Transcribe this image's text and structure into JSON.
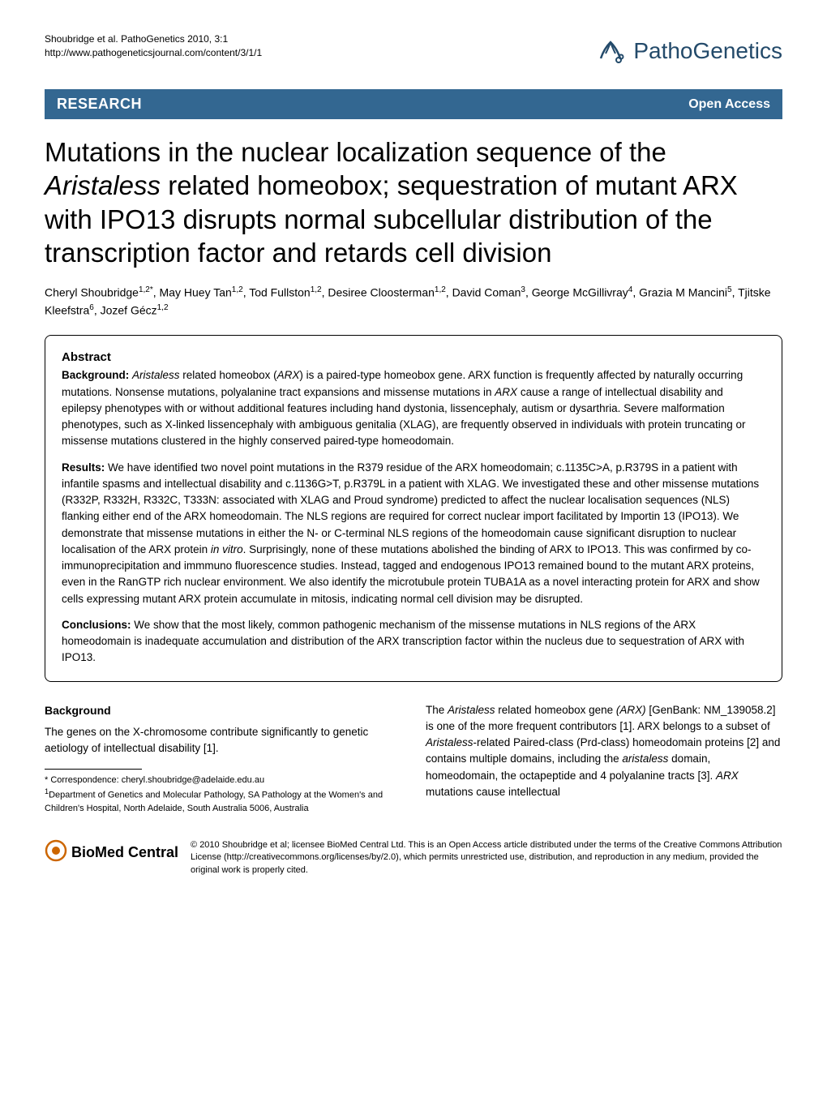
{
  "header": {
    "citation_line1": "Shoubridge et al. PathoGenetics 2010, 3:1",
    "citation_line2": "http://www.pathogeneticsjournal.com/content/3/1/1",
    "logo_text": "PathoGenetics",
    "logo_color": "#234a6a"
  },
  "banner": {
    "left": "RESEARCH",
    "right": "Open Access",
    "bg_color": "#336791",
    "text_color": "#ffffff"
  },
  "title": {
    "html": "Mutations in the nuclear localization sequence of the <em>Aristaless</em> related homeobox; sequestration of mutant ARX with IPO13 disrupts normal subcellular distribution of the transcription factor and retards cell division"
  },
  "authors": {
    "html": "Cheryl Shoubridge<sup>1,2*</sup>, May Huey Tan<sup>1,2</sup>, Tod Fullston<sup>1,2</sup>, Desiree Cloosterman<sup>1,2</sup>, David Coman<sup>3</sup>, George McGillivray<sup>4</sup>, Grazia M Mancini<sup>5</sup>, Tjitske Kleefstra<sup>6</sup>, Jozef Gécz<sup>1,2</sup>"
  },
  "abstract": {
    "heading": "Abstract",
    "background": {
      "label": "Background:",
      "html": "<em>Aristaless</em> related homeobox (<em>ARX</em>) is a paired-type homeobox gene. ARX function is frequently affected by naturally occurring mutations. Nonsense mutations, polyalanine tract expansions and missense mutations in <em>ARX</em> cause a range of intellectual disability and epilepsy phenotypes with or without additional features including hand dystonia, lissencephaly, autism or dysarthria. Severe malformation phenotypes, such as X-linked lissencephaly with ambiguous genitalia (XLAG), are frequently observed in individuals with protein truncating or missense mutations clustered in the highly conserved paired-type homeodomain."
    },
    "results": {
      "label": "Results:",
      "html": "We have identified two novel point mutations in the R379 residue of the ARX homeodomain; c.1135C>A, p.R379S in a patient with infantile spasms and intellectual disability and c.1136G>T, p.R379L in a patient with XLAG. We investigated these and other missense mutations (R332P, R332H, R332C, T333N: associated with XLAG and Proud syndrome) predicted to affect the nuclear localisation sequences (NLS) flanking either end of the ARX homeodomain. The NLS regions are required for correct nuclear import facilitated by Importin 13 (IPO13). We demonstrate that missense mutations in either the N- or C-terminal NLS regions of the homeodomain cause significant disruption to nuclear localisation of the ARX protein <em>in vitro</em>. Surprisingly, none of these mutations abolished the binding of ARX to IPO13. This was confirmed by co-immunoprecipitation and immmuno fluorescence studies. Instead, tagged and endogenous IPO13 remained bound to the mutant ARX proteins, even in the RanGTP rich nuclear environment. We also identify the microtubule protein TUBA1A as a novel interacting protein for ARX and show cells expressing mutant ARX protein accumulate in mitosis, indicating normal cell division may be disrupted."
    },
    "conclusions": {
      "label": "Conclusions:",
      "html": "We show that the most likely, common pathogenic mechanism of the missense mutations in NLS regions of the ARX homeodomain is inadequate accumulation and distribution of the ARX transcription factor within the nucleus due to sequestration of ARX with IPO13."
    }
  },
  "body": {
    "background_heading": "Background",
    "left_col_html": "The genes on the X-chromosome contribute significantly to genetic aetiology of intellectual disability [1].",
    "right_col_html": "The <em>Aristaless</em> related homeobox gene <em>(ARX)</em> [GenBank: NM_139058.2] is one of the more frequent contributors [1]. ARX belongs to a subset of <em>Aristaless</em>-related Paired-class (Prd-class) homeodomain proteins [2] and contains multiple domains, including the <em>aristaless</em> domain, homeodomain, the octapeptide and 4 polyalanine tracts [3]. <em>ARX</em> mutations cause intellectual"
  },
  "footnote": {
    "correspondence": "* Correspondence: cheryl.shoubridge@adelaide.edu.au",
    "affiliation": "<sup>1</sup>Department of Genetics and Molecular Pathology, SA Pathology at the Women's and Children's Hospital, North Adelaide, South Australia 5006, Australia"
  },
  "footer": {
    "bmc_text": "BioMed Central",
    "license": "© 2010 Shoubridge et al; licensee BioMed Central Ltd. This is an Open Access article distributed under the terms of the Creative Commons Attribution License (http://creativecommons.org/licenses/by/2.0), which permits unrestricted use, distribution, and reproduction in any medium, provided the original work is properly cited."
  }
}
